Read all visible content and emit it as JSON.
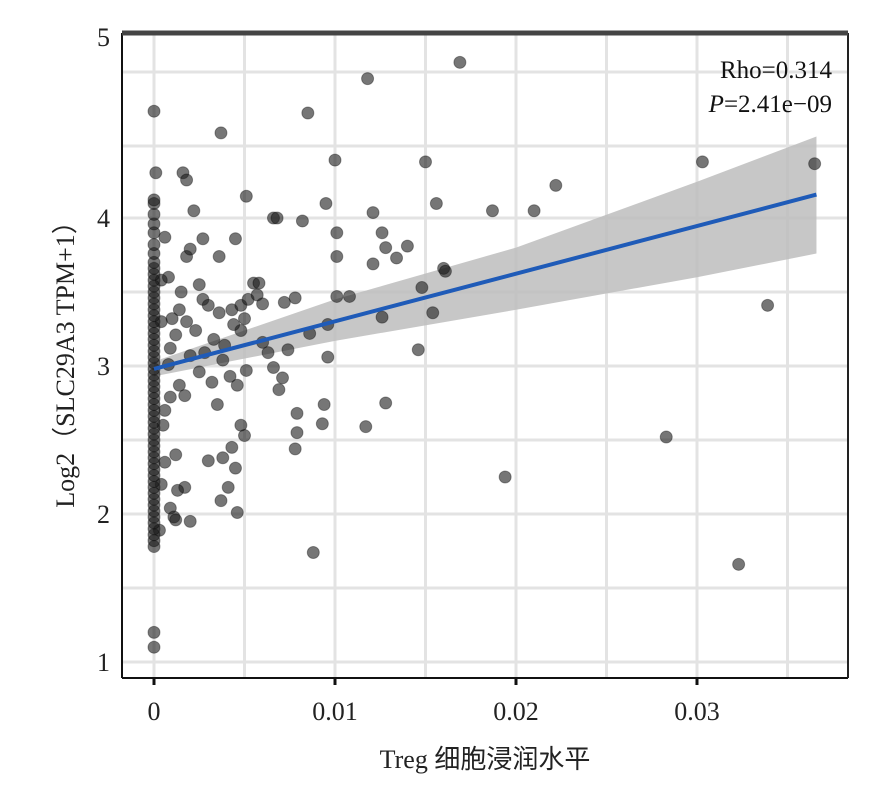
{
  "chart_data": {
    "type": "scatter",
    "title": "",
    "xlabel": "Treg 细胞浸润水平",
    "ylabel": "Log2（SLC29A3 TPM+1）",
    "xlim": [
      -0.0018,
      0.0383
    ],
    "ylim": [
      0.9,
      5
    ],
    "x_ticks": [
      0,
      0.01,
      0.02,
      0.03
    ],
    "x_tick_labels": [
      "0",
      "0.01",
      "0.02",
      "0.03"
    ],
    "y_ticks": [
      1,
      2,
      3,
      4,
      5
    ],
    "y_tick_labels": [
      "1",
      "2",
      "3",
      "4",
      "5"
    ],
    "grid": true,
    "legend": "none",
    "annotations": {
      "rho": "Rho=0.314",
      "p_label": "P",
      "p_value": "=2.41e−09",
      "placement": "top-right"
    },
    "colors": {
      "points": "#1a1a1a",
      "fit_line": "#1f5bb8",
      "ci_band": "#bdbdbd",
      "grid": "#e3e3e3"
    },
    "fit": {
      "intercept": 2.98,
      "slope": 31.4,
      "x_range": [
        0,
        0.0366
      ]
    },
    "ci_band": {
      "x": [
        0,
        0.01,
        0.02,
        0.03,
        0.0366
      ],
      "lower": [
        2.93,
        3.17,
        3.38,
        3.6,
        3.76
      ],
      "upper": [
        3.03,
        3.45,
        3.8,
        4.2,
        4.45
      ]
    },
    "points": [
      [
        0.0169,
        4.86
      ],
      [
        0.0118,
        4.77
      ],
      [
        0.0085,
        4.58
      ],
      [
        0,
        4.59
      ],
      [
        0.0037,
        4.47
      ],
      [
        0.01,
        4.32
      ],
      [
        0.015,
        4.31
      ],
      [
        0.0303,
        4.31
      ],
      [
        0.0365,
        4.3
      ],
      [
        0.0222,
        4.18
      ],
      [
        0.0016,
        4.25
      ],
      [
        0.0018,
        4.21
      ],
      [
        0.0001,
        4.25
      ],
      [
        0.0051,
        4.12
      ],
      [
        0.0095,
        4.08
      ],
      [
        0.0156,
        4.08
      ],
      [
        0.0187,
        4.04
      ],
      [
        0.021,
        4.04
      ],
      [
        0.0121,
        4.03
      ],
      [
        0.0022,
        4.04
      ],
      [
        0.0066,
        4.0
      ],
      [
        0.0068,
        4.0
      ],
      [
        0.0082,
        3.98
      ],
      [
        0.0101,
        3.9
      ],
      [
        0.0126,
        3.9
      ],
      [
        0.0128,
        3.8
      ],
      [
        0.014,
        3.81
      ],
      [
        0.0134,
        3.73
      ],
      [
        0.0101,
        3.74
      ],
      [
        0.0121,
        3.69
      ],
      [
        0.016,
        3.66
      ],
      [
        0.0161,
        3.64
      ],
      [
        0.0027,
        3.86
      ],
      [
        0.0045,
        3.86
      ],
      [
        0.0036,
        3.74
      ],
      [
        0.0018,
        3.74
      ],
      [
        0.002,
        3.79
      ],
      [
        0.0006,
        3.87
      ],
      [
        0.0004,
        3.58
      ],
      [
        0.0055,
        3.56
      ],
      [
        0.0058,
        3.56
      ],
      [
        0.0078,
        3.46
      ],
      [
        0.0101,
        3.47
      ],
      [
        0.0108,
        3.47
      ],
      [
        0.0072,
        3.43
      ],
      [
        0.0148,
        3.53
      ],
      [
        0.0154,
        3.36
      ],
      [
        0.0339,
        3.41
      ],
      [
        0.0126,
        3.33
      ],
      [
        0.0096,
        3.28
      ],
      [
        0.0086,
        3.22
      ],
      [
        0.0074,
        3.11
      ],
      [
        0.0096,
        3.06
      ],
      [
        0.0146,
        3.11
      ],
      [
        0.0063,
        3.09
      ],
      [
        0.0066,
        2.99
      ],
      [
        0.0071,
        2.92
      ],
      [
        0.0069,
        2.84
      ],
      [
        0.0079,
        2.68
      ],
      [
        0.0128,
        2.75
      ],
      [
        0.0094,
        2.74
      ],
      [
        0.0079,
        2.55
      ],
      [
        0.0078,
        2.44
      ],
      [
        0.0093,
        2.61
      ],
      [
        0.0117,
        2.59
      ],
      [
        0.0283,
        2.52
      ],
      [
        0.0194,
        2.25
      ],
      [
        0.0088,
        1.74
      ],
      [
        0.0323,
        1.66
      ],
      [
        0,
        1.2
      ],
      [
        0,
        1.1
      ],
      [
        0.0027,
        3.45
      ],
      [
        0.003,
        3.41
      ],
      [
        0.0036,
        3.36
      ],
      [
        0.0043,
        3.38
      ],
      [
        0.0048,
        3.41
      ],
      [
        0.0052,
        3.45
      ],
      [
        0.0014,
        3.38
      ],
      [
        0.001,
        3.32
      ],
      [
        0.0018,
        3.3
      ],
      [
        0.0023,
        3.24
      ],
      [
        0.0033,
        3.18
      ],
      [
        0.0039,
        3.14
      ],
      [
        0.0012,
        3.21
      ],
      [
        0.0009,
        3.12
      ],
      [
        0.002,
        3.07
      ],
      [
        0.0028,
        3.09
      ],
      [
        0.0038,
        3.04
      ],
      [
        0.0042,
        2.93
      ],
      [
        0.0032,
        2.89
      ],
      [
        0.0014,
        2.87
      ],
      [
        0.0009,
        2.79
      ],
      [
        0.0006,
        2.7
      ],
      [
        0.0017,
        2.8
      ],
      [
        0.0025,
        2.96
      ],
      [
        0.0008,
        3.01
      ],
      [
        0.0046,
        2.87
      ],
      [
        0.0035,
        2.74
      ],
      [
        0.0048,
        2.6
      ],
      [
        0.005,
        2.53
      ],
      [
        0.0043,
        2.45
      ],
      [
        0.0038,
        2.38
      ],
      [
        0.003,
        2.36
      ],
      [
        0.0012,
        2.4
      ],
      [
        0.0017,
        2.18
      ],
      [
        0.0013,
        2.16
      ],
      [
        0.0037,
        2.09
      ],
      [
        0.0045,
        2.31
      ],
      [
        0.0041,
        2.18
      ],
      [
        0.0009,
        2.04
      ],
      [
        0.002,
        1.95
      ],
      [
        0.0011,
        1.98
      ],
      [
        0.0046,
        2.01
      ],
      [
        0.0003,
        1.89
      ],
      [
        0.0012,
        1.96
      ],
      [
        0.0051,
        2.97
      ],
      [
        0.0057,
        3.48
      ],
      [
        0.006,
        3.42
      ],
      [
        0.005,
        3.32
      ],
      [
        0.0048,
        3.24
      ],
      [
        0.0044,
        3.28
      ],
      [
        0.006,
        3.16
      ],
      [
        0.0015,
        3.5
      ],
      [
        0.0025,
        3.55
      ],
      [
        0.0008,
        3.6
      ],
      [
        0.0004,
        3.3
      ],
      [
        0.0005,
        2.6
      ],
      [
        0.0006,
        2.35
      ],
      [
        0.0004,
        2.2
      ]
    ],
    "x_zero_points_y": [
      1.78,
      1.82,
      1.86,
      1.9,
      1.94,
      1.98,
      2.02,
      2.06,
      2.1,
      2.14,
      2.18,
      2.22,
      2.26,
      2.3,
      2.34,
      2.38,
      2.42,
      2.46,
      2.5,
      2.54,
      2.58,
      2.62,
      2.66,
      2.7,
      2.74,
      2.78,
      2.82,
      2.86,
      2.9,
      2.94,
      2.98,
      3.02,
      3.06,
      3.1,
      3.14,
      3.18,
      3.22,
      3.26,
      3.3,
      3.34,
      3.38,
      3.42,
      3.46,
      3.5,
      3.54,
      3.58,
      3.62,
      3.66,
      3.7,
      3.76,
      3.82,
      3.9,
      3.96,
      4.02,
      4.08,
      4.1
    ]
  }
}
